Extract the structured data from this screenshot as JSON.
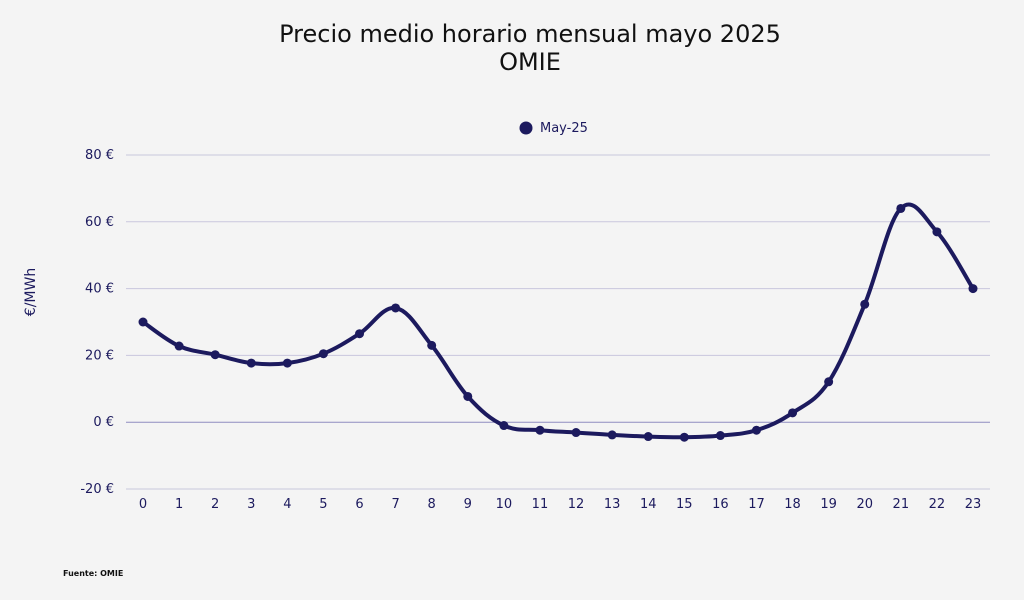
{
  "chart_data": {
    "type": "line",
    "title": "Precio medio horario mensual mayo 2025",
    "subtitle": "OMIE",
    "xlabel": "",
    "ylabel": "€/MWh",
    "categories": [
      "0",
      "1",
      "2",
      "3",
      "4",
      "5",
      "6",
      "7",
      "8",
      "9",
      "10",
      "11",
      "12",
      "13",
      "14",
      "15",
      "16",
      "17",
      "18",
      "19",
      "20",
      "21",
      "22",
      "23"
    ],
    "series": [
      {
        "name": "May-25",
        "values": [
          30,
          22.8,
          20.2,
          17.7,
          17.7,
          20.5,
          26.5,
          34.2,
          23,
          7.7,
          -1,
          -2.4,
          -3.1,
          -3.8,
          -4.3,
          -4.5,
          -4,
          -2.4,
          2.8,
          12.1,
          35.3,
          64,
          57,
          40
        ],
        "color": "#1c1a5e"
      }
    ],
    "ylim": [
      -20,
      80
    ],
    "yticks": [
      -20,
      0,
      20,
      40,
      60,
      80
    ],
    "ytick_labels": [
      "-20 €",
      "0 €",
      "20 €",
      "40 €",
      "60 €",
      "80 €"
    ],
    "grid": true,
    "legend_position": "top-center",
    "source": "Fuente: OMIE"
  },
  "colors": {
    "series": "#1c1a5e",
    "grid": "#c9c7dd",
    "zero_line": "#8f8cc0",
    "background": "#f4f4f4"
  }
}
